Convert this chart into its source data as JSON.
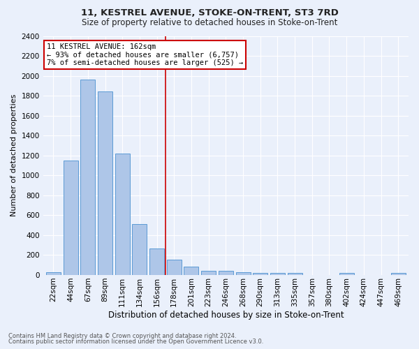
{
  "title1": "11, KESTREL AVENUE, STOKE-ON-TRENT, ST3 7RD",
  "title2": "Size of property relative to detached houses in Stoke-on-Trent",
  "xlabel": "Distribution of detached houses by size in Stoke-on-Trent",
  "ylabel": "Number of detached properties",
  "footnote1": "Contains HM Land Registry data © Crown copyright and database right 2024.",
  "footnote2": "Contains public sector information licensed under the Open Government Licence v3.0.",
  "annotation_line1": "11 KESTREL AVENUE: 162sqm",
  "annotation_line2": "← 93% of detached houses are smaller (6,757)",
  "annotation_line3": "7% of semi-detached houses are larger (525) →",
  "bar_labels": [
    "22sqm",
    "44sqm",
    "67sqm",
    "89sqm",
    "111sqm",
    "134sqm",
    "156sqm",
    "178sqm",
    "201sqm",
    "223sqm",
    "246sqm",
    "268sqm",
    "290sqm",
    "313sqm",
    "335sqm",
    "357sqm",
    "380sqm",
    "402sqm",
    "424sqm",
    "447sqm",
    "469sqm"
  ],
  "bar_values": [
    30,
    1150,
    1960,
    1840,
    1220,
    510,
    270,
    155,
    85,
    45,
    40,
    30,
    20,
    20,
    20,
    0,
    0,
    20,
    0,
    0,
    20
  ],
  "bar_color": "#aec6e8",
  "bar_edge_color": "#5b9bd5",
  "bg_color": "#eaf0fb",
  "grid_color": "#ffffff",
  "vline_x": 6.5,
  "vline_color": "#cc0000",
  "annotation_box_color": "#ffffff",
  "annotation_box_edge": "#cc0000",
  "ylim": [
    0,
    2400
  ],
  "yticks": [
    0,
    200,
    400,
    600,
    800,
    1000,
    1200,
    1400,
    1600,
    1800,
    2000,
    2200,
    2400
  ],
  "title1_fontsize": 9.5,
  "title2_fontsize": 8.5,
  "xlabel_fontsize": 8.5,
  "ylabel_fontsize": 8,
  "annotation_fontsize": 7.5,
  "footnote_fontsize": 6,
  "tick_fontsize": 7.5
}
